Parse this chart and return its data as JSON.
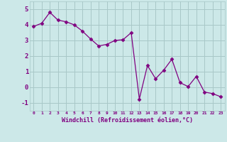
{
  "x": [
    0,
    1,
    2,
    3,
    4,
    5,
    6,
    7,
    8,
    9,
    10,
    11,
    12,
    13,
    14,
    15,
    16,
    17,
    18,
    19,
    20,
    21,
    22,
    23
  ],
  "y": [
    3.9,
    4.1,
    4.8,
    4.3,
    4.2,
    4.0,
    3.6,
    3.1,
    2.65,
    2.75,
    3.0,
    3.05,
    3.5,
    -0.75,
    1.4,
    0.55,
    1.1,
    1.8,
    0.3,
    0.05,
    0.7,
    -0.3,
    -0.4,
    -0.6
  ],
  "line_color": "#800080",
  "marker": "D",
  "marker_size": 2.5,
  "bg_color": "#cce8e8",
  "grid_color": "#a8c8c8",
  "xlabel": "Windchill (Refroidissement éolien,°C)",
  "tick_color": "#800080",
  "ylim": [
    -1.5,
    5.5
  ],
  "yticks": [
    -1,
    0,
    1,
    2,
    3,
    4,
    5
  ],
  "xlim": [
    -0.5,
    23.5
  ],
  "xticks": [
    0,
    1,
    2,
    3,
    4,
    5,
    6,
    7,
    8,
    9,
    10,
    11,
    12,
    13,
    14,
    15,
    16,
    17,
    18,
    19,
    20,
    21,
    22,
    23
  ],
  "xtick_labels": [
    "0",
    "1",
    "2",
    "3",
    "4",
    "5",
    "6",
    "7",
    "8",
    "9",
    "10",
    "11",
    "12",
    "13",
    "14",
    "15",
    "16",
    "17",
    "18",
    "19",
    "20",
    "21",
    "22",
    "23"
  ]
}
